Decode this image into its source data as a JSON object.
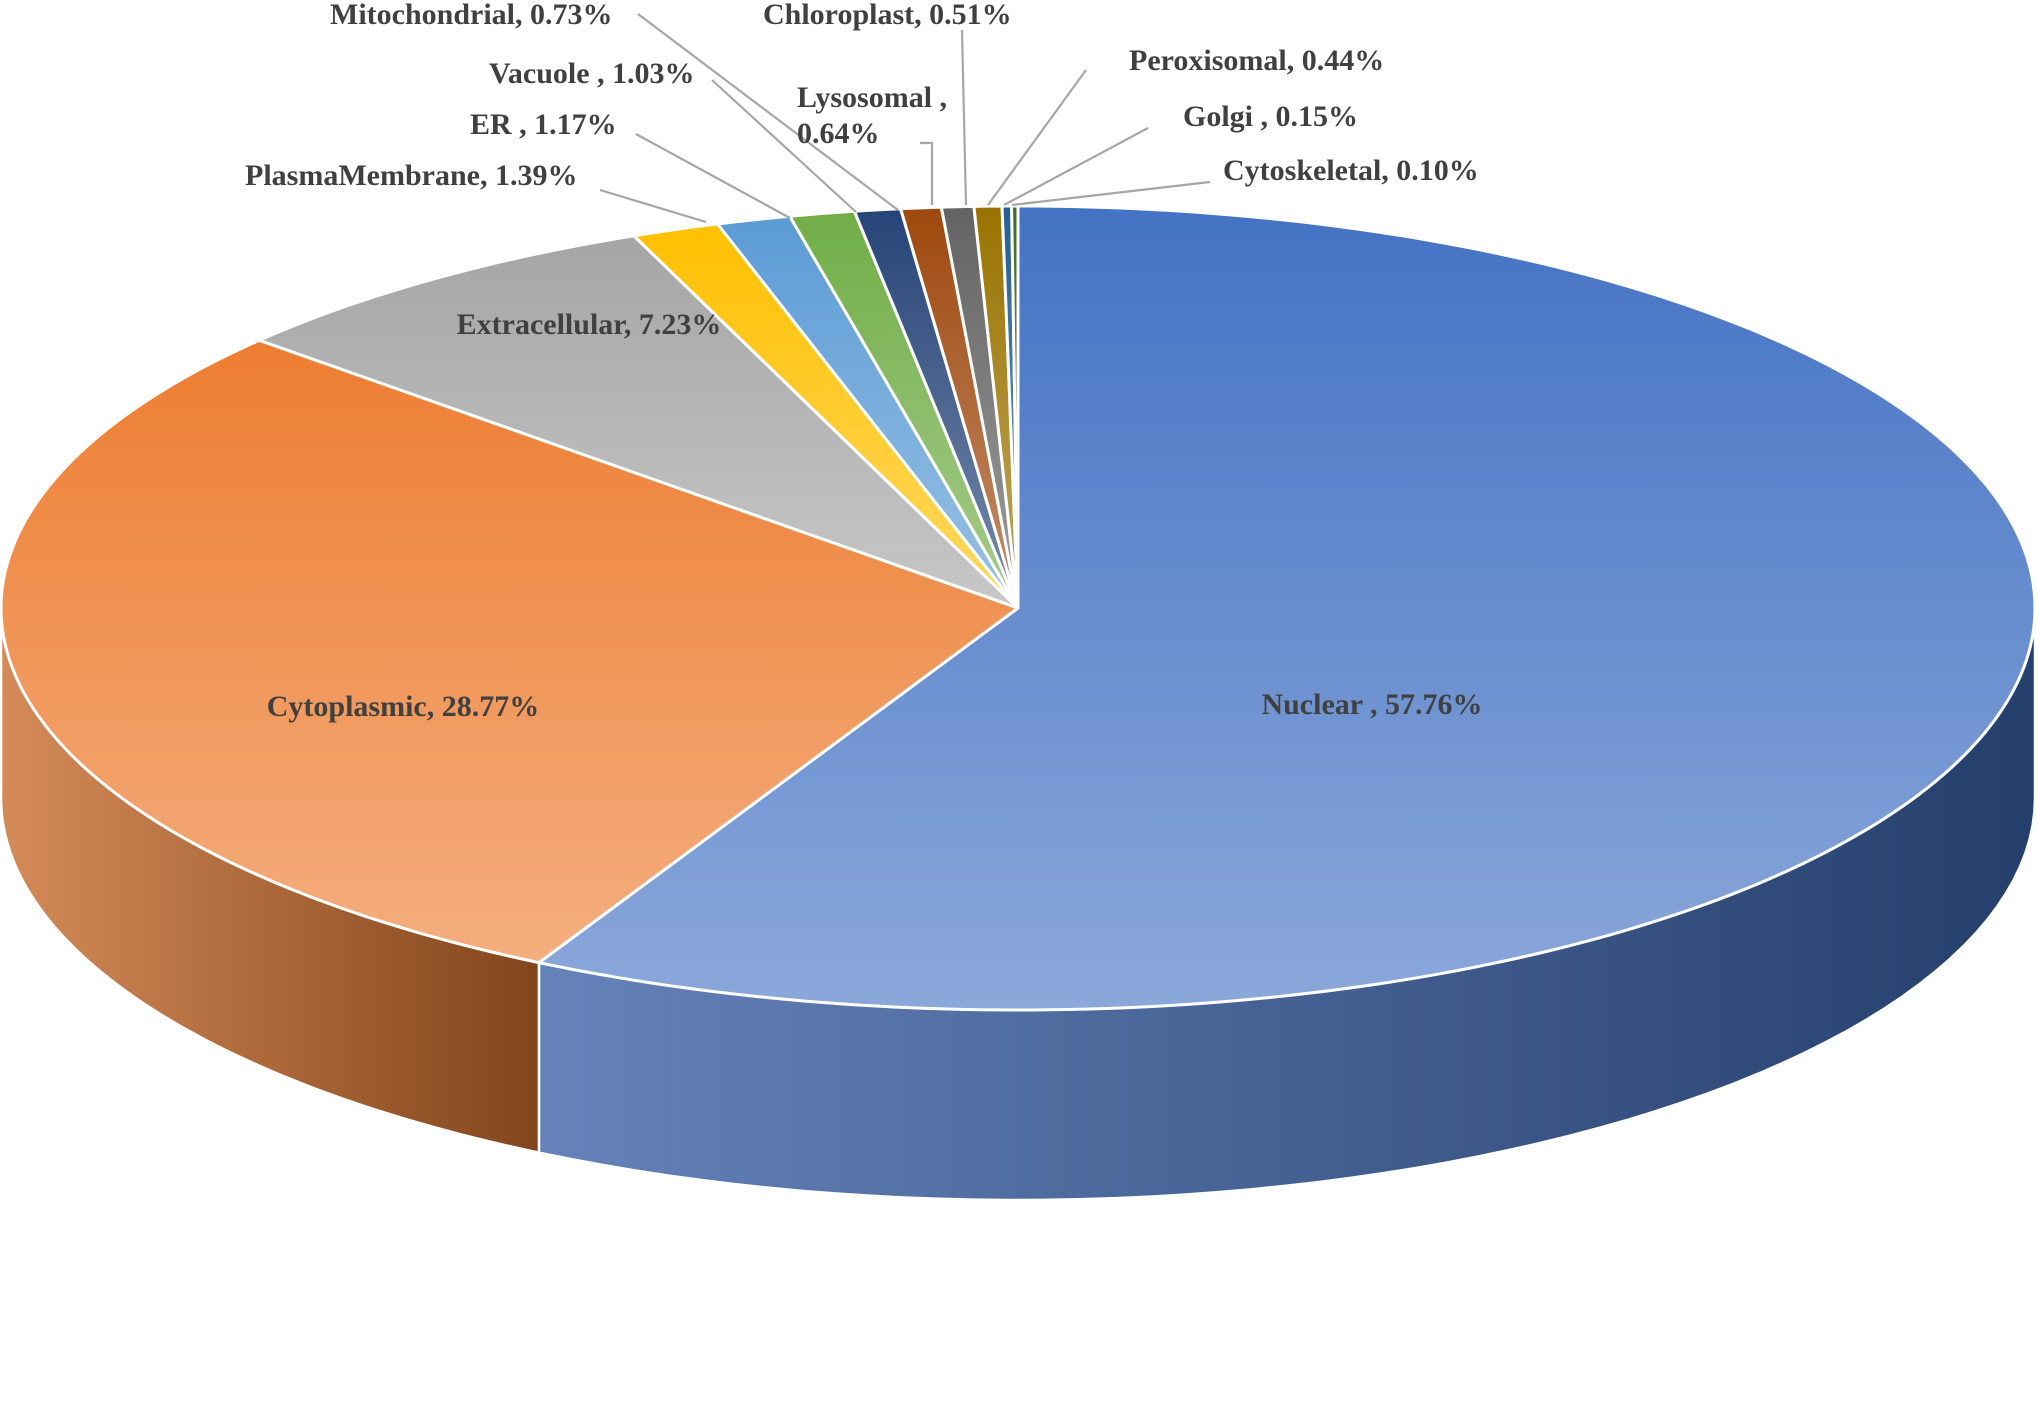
{
  "chart_data": {
    "type": "pie",
    "title": "",
    "slices": [
      {
        "name": "Nuclear",
        "value": 57.76,
        "label": "Nuclear , 57.76%",
        "color": "#4472c4"
      },
      {
        "name": "Cytoplasmic",
        "value": 28.77,
        "label": "Cytoplasmic,  28.77%",
        "color": "#ed7d31"
      },
      {
        "name": "Extracellular",
        "value": 7.23,
        "label": "Extracellular,  7.23%",
        "color": "#a5a5a5"
      },
      {
        "name": "PlasmaMembrane",
        "value": 1.39,
        "label": "PlasmaMembrane,  1.39%",
        "color": "#ffc000"
      },
      {
        "name": "ER",
        "value": 1.17,
        "label": "ER  , 1.17%",
        "color": "#5b9bd5"
      },
      {
        "name": "Vacuole",
        "value": 1.03,
        "label": "Vacuole  , 1.03%",
        "color": "#70ad47"
      },
      {
        "name": "Mitochondrial",
        "value": 0.73,
        "label": "Mitochondrial,  0.73%",
        "color": "#264478"
      },
      {
        "name": "Lysosomal",
        "value": 0.64,
        "label": "Lysosomal  ,\n0.64%",
        "color": "#9e480e"
      },
      {
        "name": "Chloroplast",
        "value": 0.51,
        "label": "Chloroplast,  0.51%",
        "color": "#636363"
      },
      {
        "name": "Peroxisomal",
        "value": 0.44,
        "label": "Peroxisomal,  0.44%",
        "color": "#997300"
      },
      {
        "name": "Golgi",
        "value": 0.15,
        "label": "Golgi  , 0.15%",
        "color": "#255e91"
      },
      {
        "name": "Cytoskeletal",
        "value": 0.1,
        "label": "Cytoskeletal,  0.10%",
        "color": "#43682b"
      }
    ],
    "start_angle": "12 o'clock",
    "direction": "clockwise",
    "style": "3d"
  }
}
